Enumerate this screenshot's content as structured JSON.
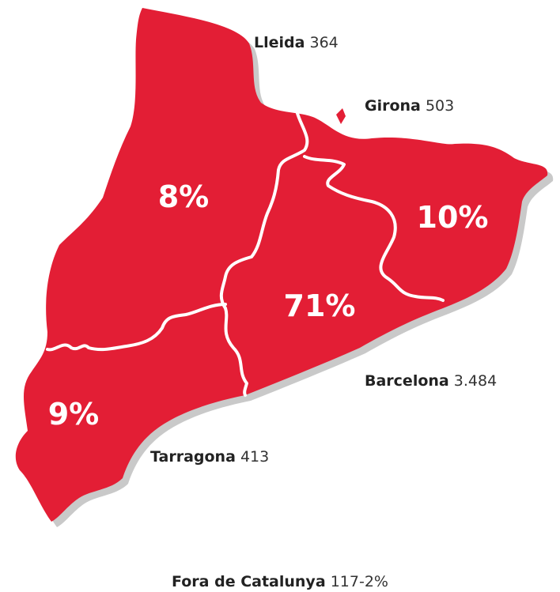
{
  "regions": [
    {
      "name": "Lleida",
      "count": "364",
      "percent": "8%"
    },
    {
      "name": "Girona",
      "count": "503",
      "percent": "10%"
    },
    {
      "name": "Barcelona",
      "count": "3.484",
      "percent": "71%"
    },
    {
      "name": "Tarragona",
      "count": "413",
      "percent": "9%"
    }
  ],
  "footer": {
    "name": "Fora de Catalunya",
    "value": "117-2%"
  }
}
